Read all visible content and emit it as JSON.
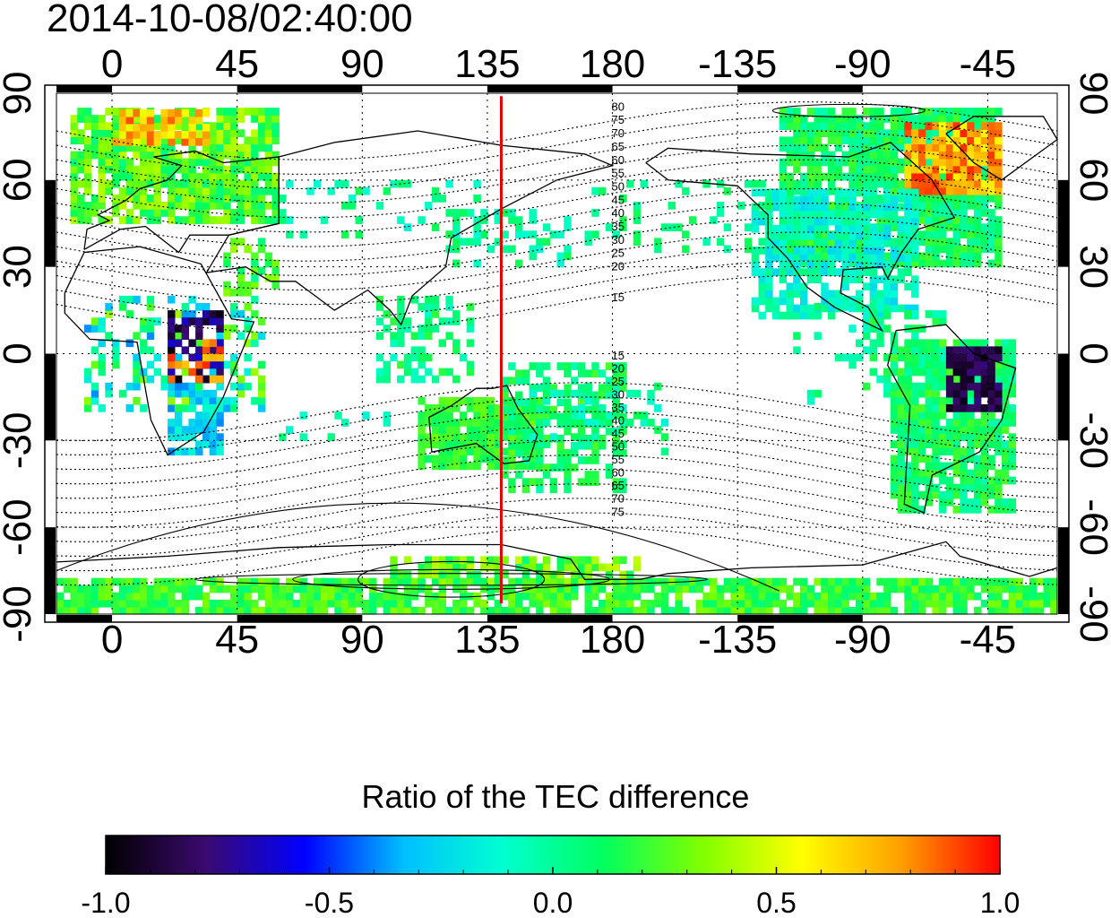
{
  "title": "2014-10-08/02:40:00",
  "map": {
    "lon_ticks": [
      {
        "lon": 0,
        "label": "0"
      },
      {
        "lon": 45,
        "label": "45"
      },
      {
        "lon": 90,
        "label": "90"
      },
      {
        "lon": 135,
        "label": "135"
      },
      {
        "lon": 180,
        "label": "180"
      },
      {
        "lon": 225,
        "label": "-135"
      },
      {
        "lon": 270,
        "label": "-90"
      },
      {
        "lon": 315,
        "label": "-45"
      }
    ],
    "lat_ticks": [
      {
        "lat": 90,
        "label": "90"
      },
      {
        "lat": 60,
        "label": "60"
      },
      {
        "lat": 30,
        "label": "30"
      },
      {
        "lat": 0,
        "label": "0"
      },
      {
        "lat": -30,
        "label": "-30"
      },
      {
        "lat": -60,
        "label": "-60"
      },
      {
        "lat": -90,
        "label": "-90"
      }
    ],
    "lon_range": [
      -20,
      340
    ],
    "lat_range": [
      -90,
      90
    ],
    "marker_longitude": 140,
    "marker_color": "#e00000",
    "contour_labels_north": [
      "80",
      "75",
      "70",
      "65",
      "60",
      "55",
      "50",
      "45",
      "40",
      "35",
      "30",
      "25",
      "20",
      "15"
    ],
    "contour_labels_south": [
      "15",
      "20",
      "25",
      "30",
      "35",
      "40",
      "45",
      "50",
      "55",
      "60",
      "65",
      "70",
      "75"
    ]
  },
  "colorbar": {
    "title": "Ratio of the TEC difference",
    "range": [
      -1.0,
      1.0
    ],
    "tick_labels": [
      "-1.0",
      "-0.5",
      "0.0",
      "0.5",
      "1.0"
    ],
    "colors": [
      "#000000",
      "#3a0a6e",
      "#0000ff",
      "#00bfff",
      "#00ffd0",
      "#00ff60",
      "#80ff00",
      "#ffff00",
      "#ffa000",
      "#ff0000"
    ]
  }
}
